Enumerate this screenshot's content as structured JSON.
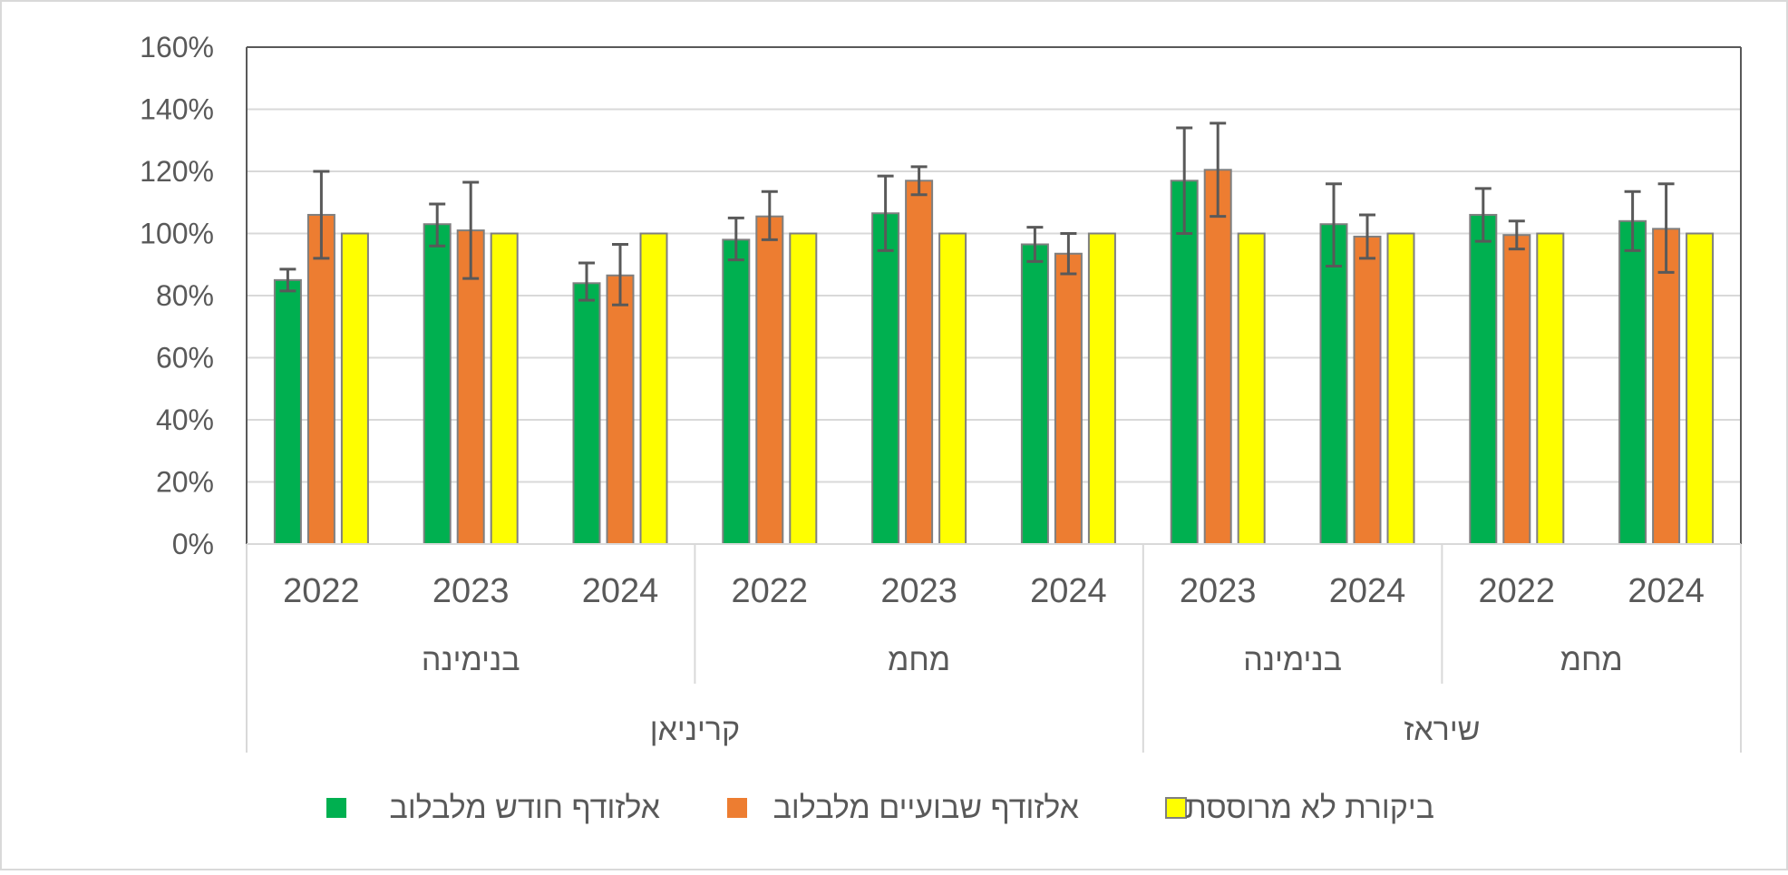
{
  "chart_data": {
    "type": "bar",
    "title": "",
    "xlabel": "",
    "ylabel": "",
    "ylim": [
      0,
      160
    ],
    "yticks": [
      "0%",
      "20%",
      "40%",
      "60%",
      "80%",
      "100%",
      "120%",
      "140%",
      "160%"
    ],
    "grid": true,
    "legend_position": "bottom",
    "categories": [
      {
        "year": "2022",
        "site": "בנימינה",
        "variety": "קריניאן"
      },
      {
        "year": "2023",
        "site": "בנימינה",
        "variety": "קריניאן"
      },
      {
        "year": "2024",
        "site": "בנימינה",
        "variety": "קריניאן"
      },
      {
        "year": "2022",
        "site": "מחמ",
        "variety": "קריניאן"
      },
      {
        "year": "2023",
        "site": "מחמ",
        "variety": "קריניאן"
      },
      {
        "year": "2024",
        "site": "מחמ",
        "variety": "קריניאן"
      },
      {
        "year": "2023",
        "site": "בנימינה",
        "variety": "שיראז"
      },
      {
        "year": "2024",
        "site": "בנימינה",
        "variety": "שיראז"
      },
      {
        "year": "2022",
        "site": "מחמ",
        "variety": "שיראז"
      },
      {
        "year": "2024",
        "site": "מחמ",
        "variety": "שיראז"
      }
    ],
    "site_groups": [
      {
        "label": "בנימינה",
        "count": 3
      },
      {
        "label": "מחמ",
        "count": 3
      },
      {
        "label": "בנימינה",
        "count": 2
      },
      {
        "label": "מחמ",
        "count": 2
      }
    ],
    "variety_groups": [
      {
        "label": "קריניאן",
        "count": 6
      },
      {
        "label": "שיראז",
        "count": 4
      }
    ],
    "series": [
      {
        "name": "אלזודף חודש מלבלוב",
        "color": "#00b050",
        "values": [
          85,
          103,
          84,
          98,
          106.5,
          96.5,
          117,
          103,
          106,
          104
        ],
        "error_low": [
          81.5,
          96,
          78.5,
          91.5,
          94.5,
          91,
          100,
          89.5,
          97.5,
          94.5
        ],
        "error_high": [
          88.5,
          109.5,
          90.5,
          105,
          118.5,
          102,
          134,
          116,
          114.5,
          113.5
        ]
      },
      {
        "name": "אלזודף שבועיים מלבלוב",
        "color": "#ed7d31",
        "values": [
          106,
          101,
          86.5,
          105.5,
          117,
          93.5,
          120.5,
          99,
          99.5,
          101.5
        ],
        "error_low": [
          92,
          85.5,
          77,
          98,
          112.5,
          87,
          105.5,
          92,
          95,
          87.5
        ],
        "error_high": [
          120,
          116.5,
          96.5,
          113.5,
          121.5,
          100,
          135.5,
          106,
          104,
          116
        ]
      },
      {
        "name": "ביקורת לא מרוססת",
        "color": "#ffff00",
        "values": [
          100,
          100,
          100,
          100,
          100,
          100,
          100,
          100,
          100,
          100
        ]
      }
    ]
  }
}
